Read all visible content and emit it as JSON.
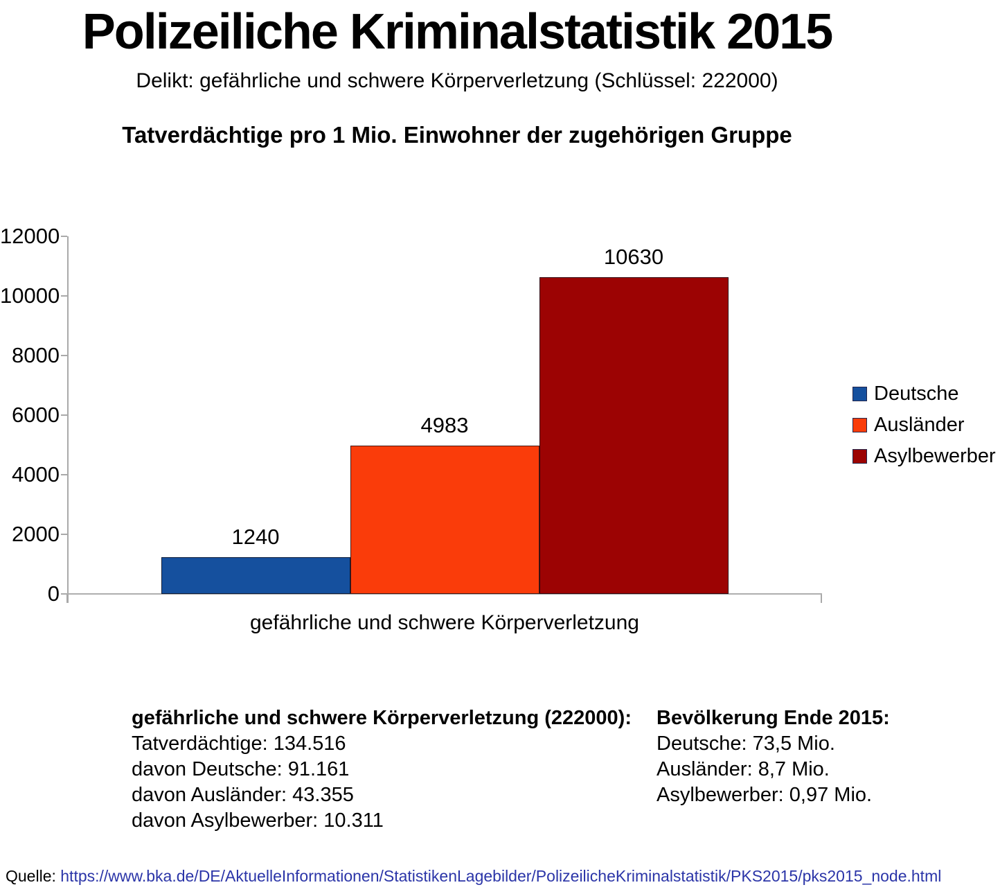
{
  "page": {
    "title": "Polizeiliche Kriminalstatistik 2015",
    "subtitle": "Delikt: gefährliche und schwere Körperverletzung (Schlüssel: 222000)",
    "source_label": "Quelle:",
    "source_url": "https://www.bka.de/DE/AktuelleInformationen/StatistikenLagebilder/PolizeilicheKriminalstatistik/PKS2015/pks2015_node.html",
    "source_url_color": "#2b35a8"
  },
  "chart_data": {
    "type": "bar",
    "title": "Tatverdächtige pro 1 Mio. Einwohner der zugehörigen Gruppe",
    "categories": [
      "gefährliche und schwere Körperverletzung"
    ],
    "series": [
      {
        "name": "Deutsche",
        "values": [
          1240
        ],
        "color": "#15509e"
      },
      {
        "name": "Ausländer",
        "values": [
          4983
        ],
        "color": "#fa3c0a"
      },
      {
        "name": "Asylbewerber",
        "values": [
          10630
        ],
        "color": "#9c0303"
      }
    ],
    "xlabel": "",
    "ylabel": "",
    "ylim": [
      0,
      12000
    ],
    "yticks": [
      0,
      2000,
      4000,
      6000,
      8000,
      10000,
      12000
    ],
    "grid": false,
    "bar_labels": true,
    "legend_position": "right",
    "axis_color": "#a9a9a9"
  },
  "notes": {
    "left": {
      "heading": "gefährliche und schwere Körperverletzung (222000):",
      "lines": [
        "Tatverdächtige: 134.516",
        "davon Deutsche: 91.161",
        "davon Ausländer: 43.355",
        "davon Asylbewerber: 10.311"
      ]
    },
    "right": {
      "heading": "Bevölkerung Ende 2015:",
      "lines": [
        "Deutsche: 73,5 Mio.",
        "Ausländer: 8,7 Mio.",
        "Asylbewerber: 0,97 Mio."
      ]
    }
  }
}
